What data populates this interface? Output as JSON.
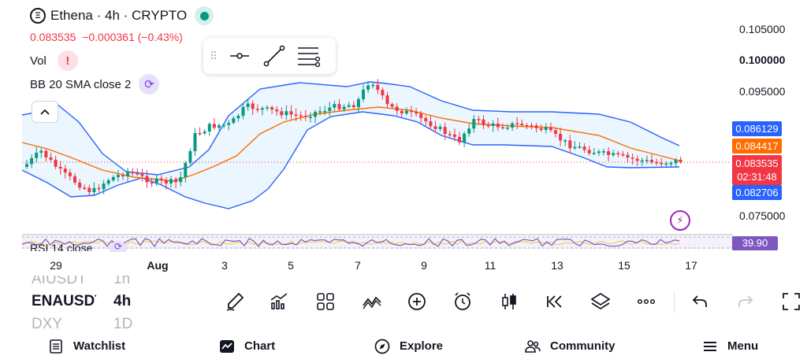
{
  "header": {
    "logo_glyph": "Ξ",
    "symbol_title": "Ethena · 4h · CRYPTO",
    "last_price": "0.083535",
    "change": "−0.000361 (−0.43%)"
  },
  "indicators": {
    "vol_label": "Vol",
    "vol_warning_glyph": "!",
    "bb_label": "BB 20 SMA close 2",
    "rsi_label": "RSI 14 close",
    "collapse_glyph": "^"
  },
  "price_axis": {
    "labels": [
      "0.105000",
      "0.100000",
      "0.095000",
      "0.075000"
    ],
    "tags": {
      "bb_upper": "0.086129",
      "bb_basis": "0.084417",
      "last_price": "0.083535",
      "countdown": "02:31:48",
      "bb_lower": "0.082706"
    },
    "rsi_value": "39.90"
  },
  "time_axis": {
    "labels": [
      "29",
      "Aug",
      "3",
      "5",
      "7",
      "9",
      "11",
      "13",
      "15",
      "17"
    ]
  },
  "colors": {
    "up": "#089981",
    "down": "#f23645",
    "bb_band": "#2962ff",
    "bb_basis": "#ff6d00",
    "rsi": "#7e57c2"
  },
  "symbol_list": {
    "prev": "AIUSDT",
    "prev_interval": "1h",
    "current": "ENAUSDT",
    "current_interval": "4h",
    "next": "DXY",
    "next_interval": "1D"
  },
  "toolbar_icons": [
    "brush-icon",
    "indicators-icon",
    "templates-icon",
    "compare-icon",
    "add-icon",
    "alert-icon",
    "candle-type-icon",
    "replay-icon",
    "layers-icon",
    "more-icon",
    "undo-icon",
    "redo-icon",
    "fullscreen-icon"
  ],
  "drawing_toolbar_icons": [
    "horizontal-line-icon",
    "trend-line-icon",
    "fib-levels-icon"
  ],
  "bottom_nav": {
    "watchlist": "Watchlist",
    "chart": "Chart",
    "explore": "Explore",
    "community": "Community",
    "menu": "Menu"
  }
}
